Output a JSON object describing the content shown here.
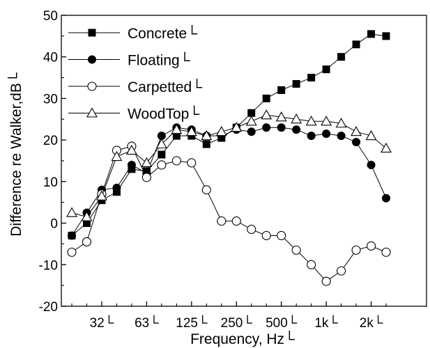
{
  "chart_data": {
    "type": "line",
    "xlabel": "Frequency, Hz└",
    "ylabel": "Difference re Walker,dB└",
    "ylim": [
      -20,
      50
    ],
    "yticks": [
      -20,
      -10,
      0,
      10,
      20,
      30,
      40,
      50
    ],
    "x_ticks": [
      {
        "band": 2,
        "label": "32└"
      },
      {
        "band": 5,
        "label": "63└"
      },
      {
        "band": 8,
        "label": "125└"
      },
      {
        "band": 11,
        "label": "250└"
      },
      {
        "band": 14,
        "label": "500└"
      },
      {
        "band": 17,
        "label": "1k└"
      },
      {
        "band": 20,
        "label": "2k└"
      }
    ],
    "x_range": [
      -0.7,
      23.7
    ],
    "grid": false,
    "legend_position": "top-left",
    "series": [
      {
        "name": "Concrete└",
        "marker": "filled-square",
        "color": "#000000",
        "values": [
          -3,
          0,
          5.5,
          7.5,
          13,
          12.5,
          16.5,
          21,
          21,
          19,
          20.5,
          23,
          26.5,
          30,
          32,
          33.5,
          35,
          37,
          40,
          43,
          45.5,
          45
        ]
      },
      {
        "name": "Floating└",
        "marker": "filled-circle",
        "color": "#000000",
        "values": [
          -3,
          2.5,
          8,
          8.5,
          14,
          12,
          21,
          23,
          22.5,
          21,
          21,
          22.5,
          22,
          23,
          23,
          22.5,
          21,
          21.5,
          21,
          19.5,
          14,
          6
        ]
      },
      {
        "name": "Carpetted└",
        "marker": "open-circle",
        "color": "#000000",
        "values": [
          -7,
          -4.5,
          7,
          17.5,
          18.5,
          11,
          14,
          15,
          14.5,
          8,
          0.5,
          0.5,
          -1.5,
          -3,
          -3,
          -6.5,
          -10,
          -14,
          -11.5,
          -6.5,
          -5.5,
          -7
        ]
      },
      {
        "name": "WoodTop└",
        "marker": "open-triangle",
        "color": "#000000",
        "values": [
          2.5,
          1.5,
          6.5,
          16,
          17.5,
          14.5,
          19,
          22.5,
          22,
          21,
          22,
          23,
          24.5,
          26,
          25.5,
          25,
          24.5,
          24.5,
          24,
          22,
          21,
          18
        ]
      }
    ]
  }
}
